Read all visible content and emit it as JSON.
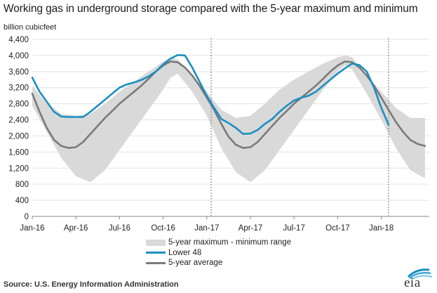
{
  "title": "Working gas in underground  storage compared with the 5-year maximum and minimum",
  "unit_label": "billion cubicfeet",
  "source": "Source:  U.S. Energy Information Administration",
  "logo_text": "eia",
  "chart_data": {
    "type": "line",
    "ylim": [
      0,
      4400
    ],
    "ytick_values": [
      0,
      400,
      800,
      1200,
      1600,
      2000,
      2400,
      2800,
      3200,
      3600,
      4000,
      4400
    ],
    "ytick_labels": [
      "0",
      "400",
      "800",
      "1,200",
      "1,600",
      "2,000",
      "2,400",
      "2,800",
      "3,200",
      "3,600",
      "4,000",
      "4,400"
    ],
    "xtick_labels": [
      "Jan-16",
      "Apr-16",
      "Jul-16",
      "Oct-16",
      "Jan-17",
      "Apr-17",
      "Jul-17",
      "Oct-17",
      "Jan-18"
    ],
    "xtick_months": [
      0,
      3,
      6,
      9,
      12,
      15,
      18,
      21,
      24
    ],
    "xlim_months": [
      0,
      27.3
    ],
    "vlines_months": [
      12.3,
      24.5
    ],
    "grid": true,
    "legend_placement": "bottom",
    "range": {
      "name": "5-year maximum - minimum range",
      "color": "#d9d9d9",
      "x_months": [
        0,
        1,
        2,
        3,
        4,
        5,
        6,
        7,
        8,
        9,
        9.5,
        10,
        11,
        12,
        13,
        14,
        15,
        16,
        17,
        18,
        19,
        20,
        21,
        21.5,
        22,
        23,
        24,
        25,
        26,
        27
      ],
      "upper": [
        3250,
        2800,
        2550,
        2500,
        2550,
        2800,
        3100,
        3350,
        3600,
        3850,
        3950,
        3900,
        3500,
        3100,
        2650,
        2450,
        2500,
        2800,
        3150,
        3400,
        3600,
        3800,
        3950,
        4000,
        3950,
        3500,
        3100,
        2700,
        2450,
        2450
      ],
      "lower": [
        2750,
        2100,
        1450,
        1000,
        850,
        1150,
        1650,
        2150,
        2650,
        3150,
        3450,
        3550,
        3100,
        2500,
        1700,
        1100,
        850,
        1150,
        1650,
        2150,
        2650,
        3150,
        3600,
        3750,
        3650,
        3050,
        2400,
        1700,
        1150,
        950
      ]
    },
    "series": [
      {
        "name": "Lower 48",
        "color": "#1a8fc2",
        "x_months": [
          0,
          0.5,
          1,
          1.5,
          2,
          2.5,
          3,
          3.5,
          4,
          4.5,
          5,
          5.5,
          6,
          6.5,
          7,
          7.5,
          8,
          8.5,
          9,
          9.5,
          10,
          10.5,
          11,
          11.5,
          12,
          12.5,
          13,
          13.5,
          14,
          14.5,
          15,
          15.5,
          16,
          16.5,
          17,
          17.5,
          18,
          18.5,
          19,
          19.5,
          20,
          20.5,
          21,
          21.5,
          22,
          22.5,
          23,
          23.5,
          24,
          24.5
        ],
        "values": [
          3450,
          3100,
          2850,
          2600,
          2480,
          2470,
          2470,
          2470,
          2600,
          2750,
          2900,
          3050,
          3200,
          3280,
          3330,
          3390,
          3480,
          3600,
          3780,
          3920,
          4010,
          4000,
          3700,
          3350,
          3000,
          2700,
          2420,
          2320,
          2200,
          2050,
          2060,
          2150,
          2300,
          2420,
          2600,
          2750,
          2880,
          2950,
          3000,
          3100,
          3250,
          3400,
          3550,
          3680,
          3800,
          3760,
          3600,
          3200,
          2700,
          2280
        ]
      },
      {
        "name": "5-year average",
        "color": "#7a7a7a",
        "x_months": [
          0,
          0.5,
          1,
          1.5,
          2,
          2.5,
          3,
          3.5,
          4,
          4.5,
          5,
          5.5,
          6,
          6.5,
          7,
          7.5,
          8,
          8.5,
          9,
          9.5,
          10,
          10.5,
          11,
          11.5,
          12,
          12.5,
          13,
          13.5,
          14,
          14.5,
          15,
          15.5,
          16,
          16.5,
          17,
          17.5,
          18,
          18.5,
          19,
          19.5,
          20,
          20.5,
          21,
          21.5,
          22,
          22.5,
          23,
          23.5,
          24,
          24.5,
          25,
          25.5,
          26,
          26.5,
          27
        ],
        "values": [
          3050,
          2600,
          2200,
          1900,
          1750,
          1700,
          1720,
          1850,
          2050,
          2250,
          2450,
          2620,
          2800,
          2950,
          3100,
          3250,
          3420,
          3600,
          3750,
          3850,
          3830,
          3700,
          3500,
          3250,
          2950,
          2650,
          2300,
          1980,
          1780,
          1700,
          1720,
          1850,
          2050,
          2250,
          2450,
          2620,
          2800,
          2950,
          3100,
          3250,
          3420,
          3600,
          3750,
          3850,
          3830,
          3700,
          3500,
          3250,
          2950,
          2650,
          2350,
          2100,
          1900,
          1800,
          1750
        ]
      }
    ]
  }
}
